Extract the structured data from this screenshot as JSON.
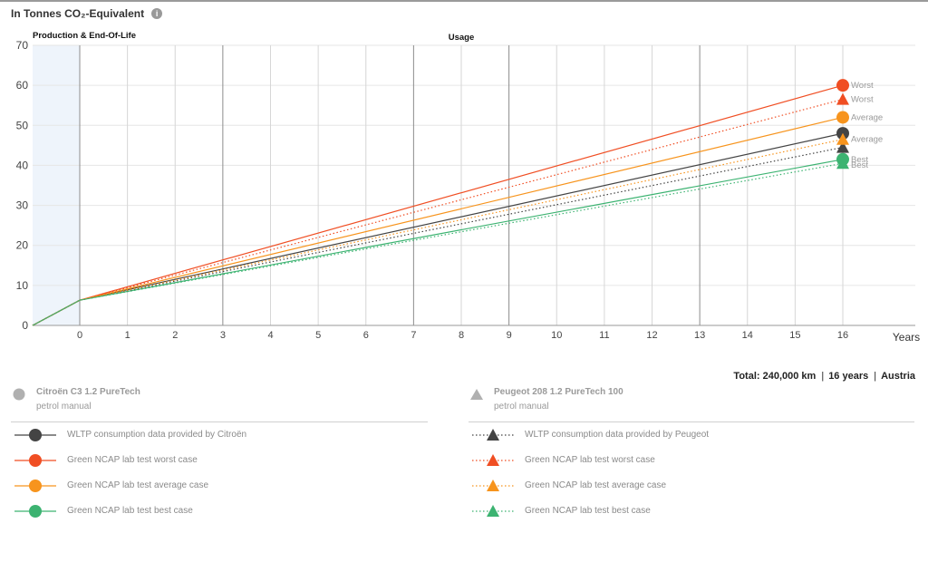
{
  "header": {
    "title": "In Tonnes CO₂-Equivalent",
    "info_icon": "info-icon"
  },
  "chart_data": {
    "type": "line",
    "ylim": [
      0,
      70
    ],
    "yticks": [
      0,
      10,
      20,
      30,
      40,
      50,
      60,
      70
    ],
    "xticks": [
      "0",
      "1",
      "2",
      "3",
      "4",
      "5",
      "6",
      "7",
      "8",
      "9",
      "10",
      "11",
      "12",
      "13",
      "14",
      "15",
      "16"
    ],
    "xlabel": "Years",
    "sections": [
      "Production & End-Of-Life",
      "Usage"
    ],
    "series": [
      {
        "name": "WLTP consumption data provided by Citroën",
        "car": "Citroën C3 1.2 PureTech",
        "color": "#444444",
        "marker": "circle",
        "style": "solid",
        "values": [
          6.3,
          48.0
        ]
      },
      {
        "name": "Green NCAP lab test worst case",
        "car": "Citroën C3 1.2 PureTech",
        "color": "#f04e23",
        "marker": "circle",
        "style": "solid",
        "values": [
          6.3,
          60.0
        ],
        "end_label": "Worst"
      },
      {
        "name": "Green NCAP lab test average case",
        "car": "Citroën C3 1.2 PureTech",
        "color": "#f7941d",
        "marker": "circle",
        "style": "solid",
        "values": [
          6.3,
          52.0
        ],
        "end_label": "Average"
      },
      {
        "name": "Green NCAP lab test best case",
        "car": "Citroën C3 1.2 PureTech",
        "color": "#3cb371",
        "marker": "circle",
        "style": "solid",
        "values": [
          6.3,
          41.5
        ],
        "end_label": "Best"
      },
      {
        "name": "WLTP consumption data provided by Peugeot",
        "car": "Peugeot 208 1.2 PureTech 100",
        "color": "#444444",
        "marker": "triangle",
        "style": "dotted",
        "values": [
          6.3,
          44.5
        ]
      },
      {
        "name": "Green NCAP lab test worst case",
        "car": "Peugeot 208 1.2 PureTech 100",
        "color": "#f04e23",
        "marker": "triangle",
        "style": "dotted",
        "values": [
          6.3,
          56.5
        ],
        "end_label": "Worst"
      },
      {
        "name": "Green NCAP lab test average case",
        "car": "Peugeot 208 1.2 PureTech 100",
        "color": "#f7941d",
        "marker": "triangle",
        "style": "dotted",
        "values": [
          6.3,
          46.5
        ],
        "end_label": "Average"
      },
      {
        "name": "Green NCAP lab test best case",
        "car": "Peugeot 208 1.2 PureTech 100",
        "color": "#3cb371",
        "marker": "triangle",
        "style": "dotted",
        "values": [
          6.3,
          40.5
        ],
        "end_label": "Best"
      }
    ]
  },
  "summary": {
    "total_label": "Total:",
    "total_value": "240,000 km",
    "years": "16 years",
    "country": "Austria"
  },
  "cars": [
    {
      "name": "Citroën C3 1.2 PureTech",
      "sub": "petrol manual",
      "marker": "circle",
      "items": [
        {
          "label": "WLTP consumption data provided by Citroën",
          "color": "#444444"
        },
        {
          "label": "Green NCAP lab test worst case",
          "color": "#f04e23"
        },
        {
          "label": "Green NCAP lab test average case",
          "color": "#f7941d"
        },
        {
          "label": "Green NCAP lab test best case",
          "color": "#3cb371"
        }
      ]
    },
    {
      "name": "Peugeot 208 1.2 PureTech 100",
      "sub": "petrol manual",
      "marker": "triangle",
      "items": [
        {
          "label": "WLTP consumption data provided by Peugeot",
          "color": "#444444"
        },
        {
          "label": "Green NCAP lab test worst case",
          "color": "#f04e23"
        },
        {
          "label": "Green NCAP lab test average case",
          "color": "#f7941d"
        },
        {
          "label": "Green NCAP lab test best case",
          "color": "#3cb371"
        }
      ]
    }
  ]
}
